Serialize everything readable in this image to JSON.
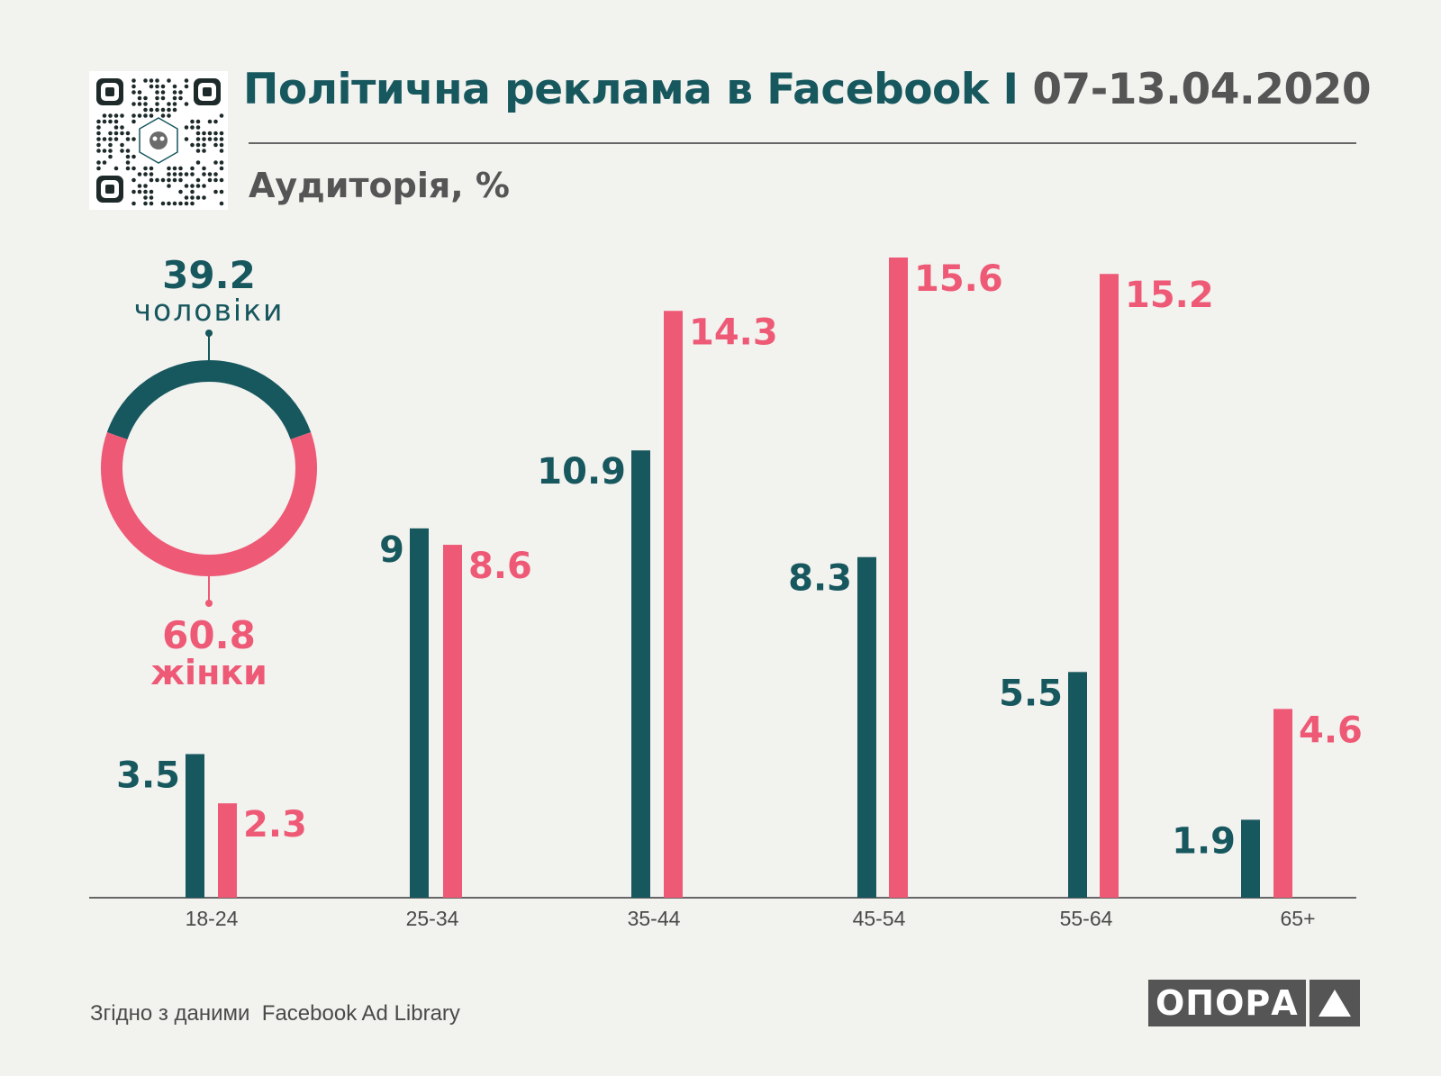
{
  "header": {
    "title_main": "Політична реклама в Facebook I",
    "title_date": "07-13.04.2020",
    "subtitle": "Аудиторія, %"
  },
  "footer": {
    "source_prefix": "Згідно з даними",
    "source_name": "Facebook Ad Library",
    "logo_text": "ОПОРА"
  },
  "colors": {
    "men": "#17575e",
    "women": "#ee5a76",
    "text_gray": "#555555",
    "background": "#f2f2ef"
  },
  "icons": {
    "qr": "qr-code-icon",
    "logo": "triangle-logo-icon"
  },
  "chart_data": [
    {
      "type": "pie",
      "style": "donut",
      "slices": [
        {
          "label": "чоловіки",
          "value": 39.2
        },
        {
          "label": "жінки",
          "value": 60.8
        }
      ],
      "value_labels": [
        "39.2",
        "60.8"
      ]
    },
    {
      "type": "bar",
      "categories": [
        "18-24",
        "25-34",
        "35-44",
        "45-54",
        "55-64",
        "65+"
      ],
      "series": [
        {
          "values": [
            3.5,
            9,
            10.9,
            8.3,
            5.5,
            1.9
          ],
          "labels": [
            "3.5",
            "9",
            "10.9",
            "8.3",
            "5.5",
            "1.9"
          ]
        },
        {
          "values": [
            2.3,
            8.6,
            14.3,
            15.6,
            15.2,
            4.6
          ],
          "labels": [
            "2.3",
            "8.6",
            "14.3",
            "15.6",
            "15.2",
            "4.6"
          ]
        }
      ],
      "ylim": [
        0,
        15.6
      ],
      "grid": false
    }
  ]
}
